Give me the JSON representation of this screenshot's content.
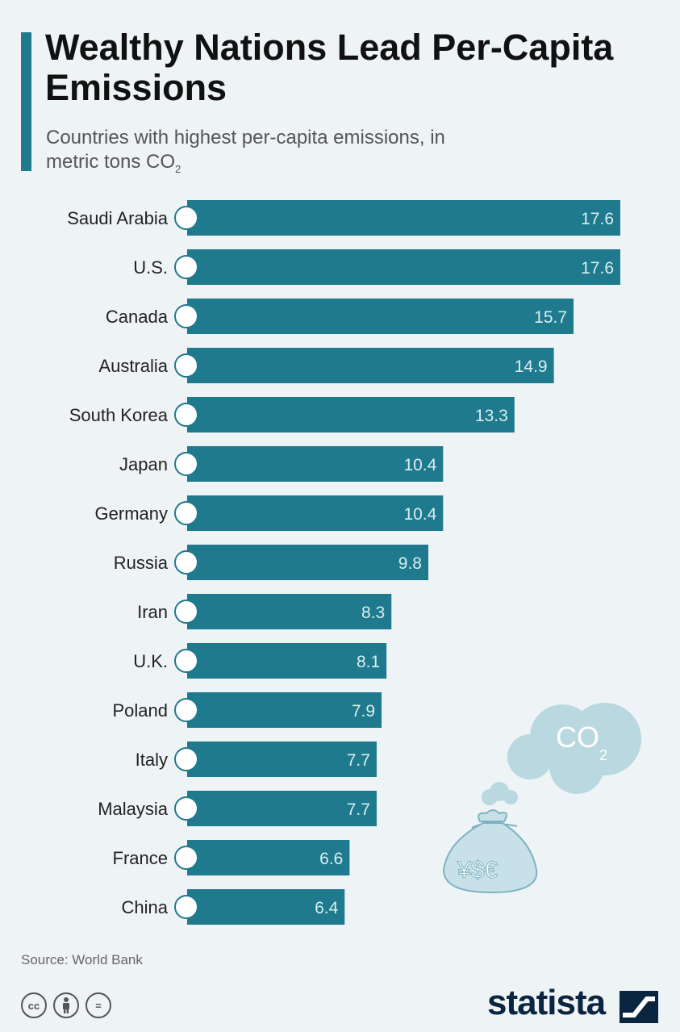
{
  "header": {
    "title": "Wealthy Nations Lead Per-Capita Emissions",
    "subtitle": "Countries with highest per-capita emissions, in metric tons CO",
    "subtitle_sub": "2"
  },
  "chart_data": {
    "type": "bar",
    "orientation": "horizontal",
    "categories": [
      "Saudi Arabia",
      "U.S.",
      "Canada",
      "Australia",
      "South Korea",
      "Japan",
      "Germany",
      "Russia",
      "Iran",
      "U.K.",
      "Poland",
      "Italy",
      "Malaysia",
      "France",
      "China"
    ],
    "values": [
      17.6,
      17.6,
      15.7,
      14.9,
      13.3,
      10.4,
      10.4,
      9.8,
      8.3,
      8.1,
      7.9,
      7.7,
      7.7,
      6.6,
      6.4
    ],
    "value_labels": [
      "17.6",
      "17.6",
      "15.7",
      "14.9",
      "13.3",
      "10.4",
      "10.4",
      "9.8",
      "8.3",
      "8.1",
      "7.9",
      "7.7",
      "7.7",
      "6.6",
      "6.4"
    ],
    "flag_icons": [
      "saudi-arabia-flag-icon",
      "us-flag-icon",
      "canada-flag-icon",
      "australia-flag-icon",
      "south-korea-flag-icon",
      "japan-flag-icon",
      "germany-flag-icon",
      "russia-flag-icon",
      "iran-flag-icon",
      "uk-flag-icon",
      "poland-flag-icon",
      "italy-flag-icon",
      "malaysia-flag-icon",
      "france-flag-icon",
      "china-flag-icon"
    ],
    "xlim": [
      0,
      17.6
    ],
    "grid": false,
    "legend": "none"
  },
  "decoration": {
    "cloud_label": "CO",
    "cloud_label_sub": "2",
    "bag_label": "¥$€"
  },
  "footer": {
    "source": "Source: World Bank",
    "brand": "statista",
    "license_icons": [
      "cc",
      "by",
      "="
    ]
  },
  "colors": {
    "bar": "#1e7a8c",
    "accent": "#1e7a8c",
    "bar_label": "#d9eef2",
    "decoration": "#b9d8e0"
  }
}
